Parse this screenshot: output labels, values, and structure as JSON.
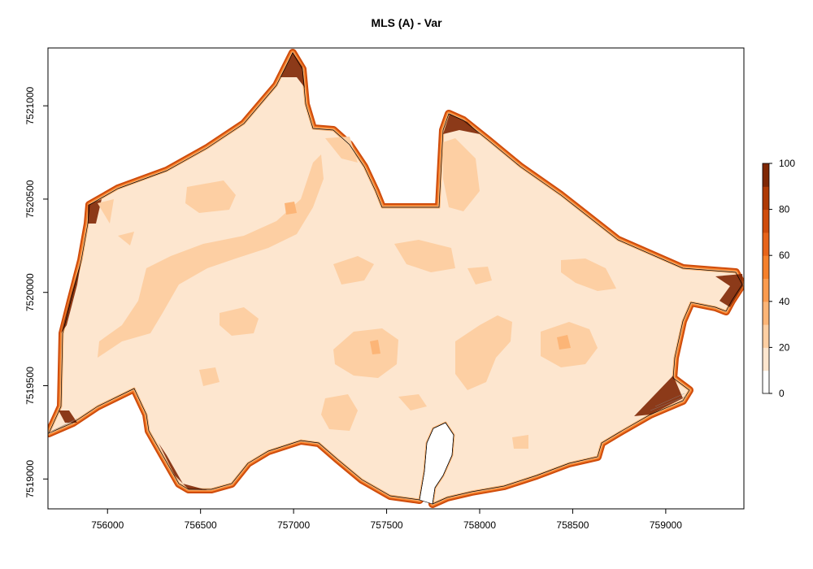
{
  "title": "MLS (A) - Var",
  "x_axis": {
    "ticks": [
      756000,
      756500,
      757000,
      757500,
      758000,
      758500,
      759000
    ],
    "labels": [
      "756000",
      "756500",
      "757000",
      "757500",
      "758000",
      "758500",
      "759000"
    ],
    "range": [
      755680,
      759420
    ]
  },
  "y_axis": {
    "ticks": [
      7519000,
      7519500,
      7520000,
      7520500,
      7521000
    ],
    "labels": [
      "7519000",
      "7519500",
      "7520000",
      "7520500",
      "7521000"
    ],
    "range": [
      7518840,
      7521310
    ]
  },
  "legend": {
    "ticks": [
      0,
      20,
      40,
      60,
      80,
      100
    ],
    "labels": [
      "0",
      "20",
      "40",
      "60",
      "80",
      "100"
    ],
    "range": [
      0,
      100
    ],
    "colors": [
      "#ffffff",
      "#fde6cf",
      "#fdcfa3",
      "#fcb577",
      "#fb9b4e",
      "#f5802b",
      "#e7641a",
      "#cf4c0c",
      "#ae3a05",
      "#7f2704"
    ]
  },
  "map": {
    "base_color": "#fde6cf",
    "mid_color": "#fdcfa3",
    "edge_colors": [
      "#fcb577",
      "#f5802b",
      "#cf4c0c",
      "#7f2704"
    ],
    "boundary_color": "#000000"
  }
}
